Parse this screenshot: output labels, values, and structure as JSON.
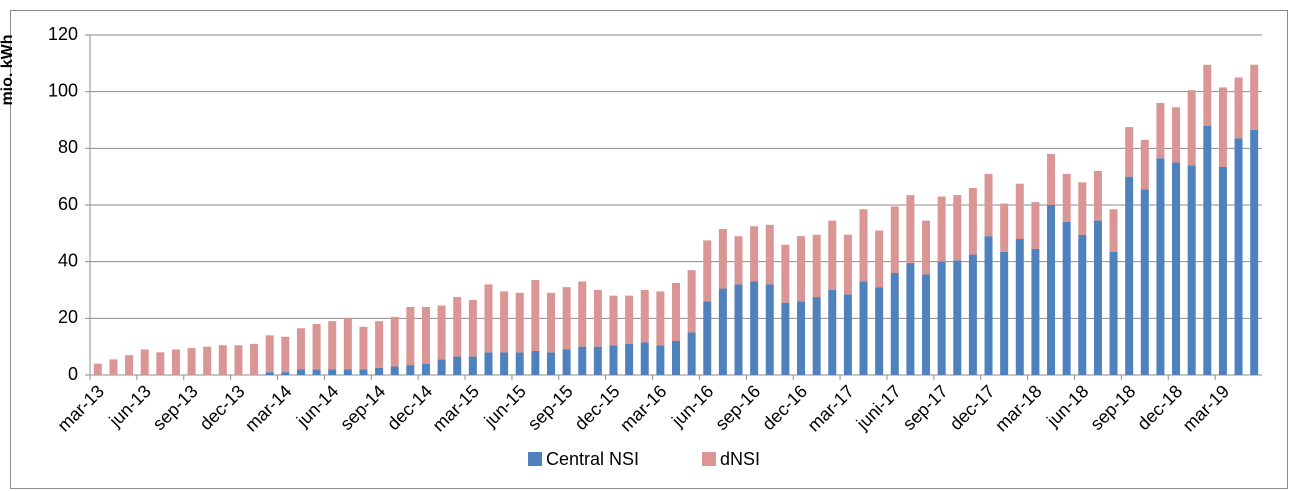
{
  "chart_data": {
    "type": "bar",
    "stacked": true,
    "y_label": "mio. kWh",
    "categories": [
      "mar-13",
      null,
      null,
      "jun-13",
      null,
      null,
      "sep-13",
      null,
      null,
      "dec-13",
      null,
      null,
      "mar-14",
      null,
      null,
      "jun-14",
      null,
      null,
      "sep-14",
      null,
      null,
      "dec-14",
      null,
      null,
      "mar-15",
      null,
      null,
      "jun-15",
      null,
      null,
      "sep-15",
      null,
      null,
      "dec-15",
      null,
      null,
      "mar-16",
      null,
      null,
      "jun-16",
      null,
      null,
      "sep-16",
      null,
      null,
      "dec-16",
      null,
      null,
      "mar-17",
      null,
      null,
      "juni-17",
      null,
      null,
      "sep-17",
      null,
      null,
      "dec-17",
      null,
      null,
      "mar-18",
      null,
      null,
      "jun-18",
      null,
      null,
      "sep-18",
      null,
      null,
      "dec-18",
      null,
      null,
      "mar-19",
      null,
      null
    ],
    "series": [
      {
        "name": "Central NSI",
        "color": "#4f81bd",
        "values": [
          0,
          0,
          0,
          0,
          0,
          0,
          0,
          0,
          0,
          0,
          0,
          1,
          1,
          2,
          2,
          2,
          2,
          2,
          2.5,
          3,
          3.5,
          4,
          5.5,
          6.5,
          6.5,
          8,
          8,
          8,
          8.5,
          8,
          9,
          10,
          10,
          10.5,
          11,
          11.5,
          10.5,
          12,
          15,
          26,
          30.5,
          32,
          33,
          32,
          25.5,
          26,
          27.5,
          30,
          28.5,
          33,
          31,
          36,
          39.5,
          35.5,
          40,
          40.5,
          42.5,
          49,
          43.5,
          48,
          44.5,
          60,
          54,
          49.5,
          54.5,
          43.5,
          70,
          65.5,
          76.5,
          75,
          74,
          88,
          73.5,
          83.5,
          86.5
        ]
      },
      {
        "name": "dNSI",
        "color": "#d99694",
        "values": [
          4,
          5.5,
          7,
          9,
          8,
          9,
          9.5,
          10,
          10.5,
          10.5,
          11,
          13,
          12.5,
          14.5,
          16,
          17,
          18,
          15,
          16.5,
          17.5,
          20.5,
          20,
          19,
          21,
          20,
          24,
          21.5,
          21,
          25,
          21,
          22,
          23,
          20,
          17.5,
          17,
          18.5,
          19,
          20.5,
          22,
          21.5,
          21,
          17,
          19.5,
          21,
          20.5,
          23,
          22,
          24.5,
          21,
          25.5,
          20,
          23.5,
          24,
          19,
          23,
          23,
          23.5,
          22,
          17,
          19.5,
          16.5,
          18,
          17,
          18.5,
          17.5,
          15,
          17.5,
          17.5,
          19.5,
          19.5,
          26.5,
          21.5,
          28,
          21.5,
          23
        ]
      }
    ],
    "ylim": [
      0,
      120
    ],
    "yticks": [
      0,
      20,
      40,
      60,
      80,
      100,
      120
    ],
    "grid": true
  }
}
